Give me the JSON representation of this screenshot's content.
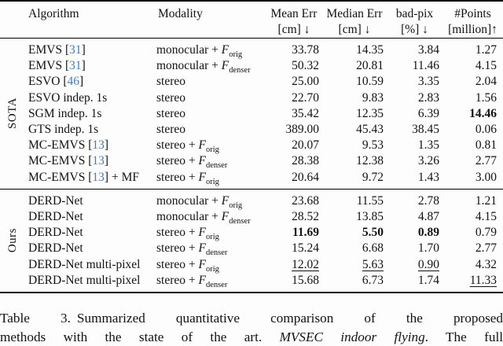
{
  "accent_colors": {
    "citation_blue": "#4a7ab5",
    "rule_black": "#000000"
  },
  "table": {
    "flow_symbol": "F",
    "columns": [
      {
        "title": "Algorithm",
        "sub": ""
      },
      {
        "title": "Modality",
        "sub": ""
      },
      {
        "title": "Mean Err",
        "sub": "[cm] ↓"
      },
      {
        "title": "Median Err",
        "sub": "[cm] ↓"
      },
      {
        "title": "bad-pix",
        "sub": "[%] ↓"
      },
      {
        "title": "#Points",
        "sub": "[million]↑"
      }
    ],
    "groups": [
      {
        "label": "SOTA",
        "rows": [
          {
            "name": "EMVS",
            "cite": "31",
            "after": "",
            "mod": "monocular",
            "sub": "orig",
            "vals": [
              "33.78",
              "14.35",
              "3.84",
              "1.27"
            ],
            "bold": [],
            "under": []
          },
          {
            "name": "EMVS",
            "cite": "31",
            "after": "",
            "mod": "monocular",
            "sub": "denser",
            "vals": [
              "50.32",
              "20.81",
              "11.46",
              "4.15"
            ],
            "bold": [],
            "under": []
          },
          {
            "name": "ESVO",
            "cite": "46",
            "after": "",
            "mod": "stereo",
            "sub": "",
            "vals": [
              "25.00",
              "10.59",
              "3.35",
              "2.04"
            ],
            "bold": [],
            "under": []
          },
          {
            "name": "ESVO indep. 1s",
            "cite": "",
            "after": "",
            "mod": "stereo",
            "sub": "",
            "vals": [
              "22.70",
              "9.83",
              "2.83",
              "1.56"
            ],
            "bold": [],
            "under": []
          },
          {
            "name": "SGM indep. 1s",
            "cite": "",
            "after": "",
            "mod": "stereo",
            "sub": "",
            "vals": [
              "35.42",
              "12.35",
              "6.39",
              "14.46"
            ],
            "bold": [
              3
            ],
            "under": []
          },
          {
            "name": "GTS indep. 1s",
            "cite": "",
            "after": "",
            "mod": "stereo",
            "sub": "",
            "vals": [
              "389.00",
              "45.43",
              "38.45",
              "0.06"
            ],
            "bold": [],
            "under": []
          },
          {
            "name": "MC-EMVS",
            "cite": "13",
            "after": "",
            "mod": "stereo",
            "sub": "orig",
            "vals": [
              "20.07",
              "9.53",
              "1.35",
              "0.81"
            ],
            "bold": [],
            "under": []
          },
          {
            "name": "MC-EMVS",
            "cite": "13",
            "after": "",
            "mod": "stereo",
            "sub": "denser",
            "vals": [
              "28.38",
              "12.38",
              "3.26",
              "2.77"
            ],
            "bold": [],
            "under": []
          },
          {
            "name": "MC-EMVS",
            "cite": "13",
            "after": " + MF",
            "mod": "stereo",
            "sub": "orig",
            "vals": [
              "20.64",
              "9.72",
              "1.43",
              "3.00"
            ],
            "bold": [],
            "under": []
          }
        ]
      },
      {
        "label": "Ours",
        "rows": [
          {
            "name": "DERD-Net",
            "cite": "",
            "after": "",
            "mod": "monocular",
            "sub": "orig",
            "vals": [
              "23.68",
              "11.55",
              "2.78",
              "1.21"
            ],
            "bold": [],
            "under": []
          },
          {
            "name": "DERD-Net",
            "cite": "",
            "after": "",
            "mod": "monocular",
            "sub": "denser",
            "vals": [
              "28.52",
              "13.85",
              "4.87",
              "4.15"
            ],
            "bold": [],
            "under": []
          },
          {
            "name": "DERD-Net",
            "cite": "",
            "after": "",
            "mod": "stereo",
            "sub": "orig",
            "vals": [
              "11.69",
              "5.50",
              "0.89",
              "0.79"
            ],
            "bold": [
              0,
              1,
              2
            ],
            "under": []
          },
          {
            "name": "DERD-Net",
            "cite": "",
            "after": "",
            "mod": "stereo",
            "sub": "denser",
            "vals": [
              "15.24",
              "6.68",
              "1.70",
              "2.77"
            ],
            "bold": [],
            "under": []
          },
          {
            "name": "DERD-Net multi-pixel",
            "cite": "",
            "after": "",
            "mod": "stereo",
            "sub": "orig",
            "vals": [
              "12.02",
              "5.63",
              "0.90",
              "4.32"
            ],
            "bold": [],
            "under": [
              0,
              1,
              2
            ]
          },
          {
            "name": "DERD-Net multi-pixel",
            "cite": "",
            "after": "",
            "mod": "stereo",
            "sub": "denser",
            "vals": [
              "15.68",
              "6.73",
              "1.74",
              "11.33"
            ],
            "bold": [],
            "under": [
              3
            ]
          }
        ]
      }
    ]
  },
  "caption": {
    "label": "Table 3.",
    "line1": "Summarized quantitative comparison of the proposed",
    "line2_pre": "methods with the state of the art. ",
    "line2_italic": "MVSEC indoor flying",
    "line2_post": ". The full"
  }
}
